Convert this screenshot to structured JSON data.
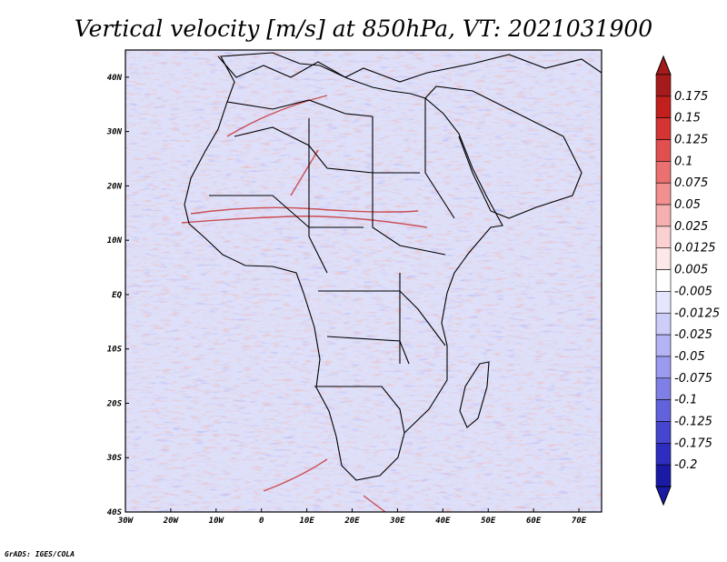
{
  "title": "Vertical velocity [m/s] at 850hPa, VT: 2021031900",
  "credit": "GrADS: IGES/COLA",
  "map": {
    "lon_range": [
      -30,
      75
    ],
    "lat_range": [
      -40,
      45
    ],
    "x_ticks": [
      "30W",
      "20W",
      "10W",
      "0",
      "10E",
      "20E",
      "30E",
      "40E",
      "50E",
      "60E",
      "70E"
    ],
    "y_ticks": [
      "40N",
      "30N",
      "20N",
      "10N",
      "EQ",
      "10S",
      "20S",
      "30S",
      "40S"
    ]
  },
  "colorbar": {
    "labels": [
      "0.175",
      "0.15",
      "0.125",
      "0.1",
      "0.075",
      "0.05",
      "0.025",
      "0.0125",
      "0.005",
      "-0.005",
      "-0.0125",
      "-0.025",
      "-0.05",
      "-0.075",
      "-0.1",
      "-0.125",
      "-0.175",
      "-0.2"
    ],
    "colors": [
      "#a51a1a",
      "#c21f1f",
      "#d43434",
      "#e15050",
      "#eb7070",
      "#f29090",
      "#f7b0b0",
      "#fbd0d0",
      "#fde8e8",
      "#ffffff",
      "#e6e6ff",
      "#cdcdfa",
      "#b3b3f5",
      "#9a9aef",
      "#7f7fe6",
      "#6262dc",
      "#4545cf",
      "#2d2dc0",
      "#1a1aa5"
    ]
  }
}
